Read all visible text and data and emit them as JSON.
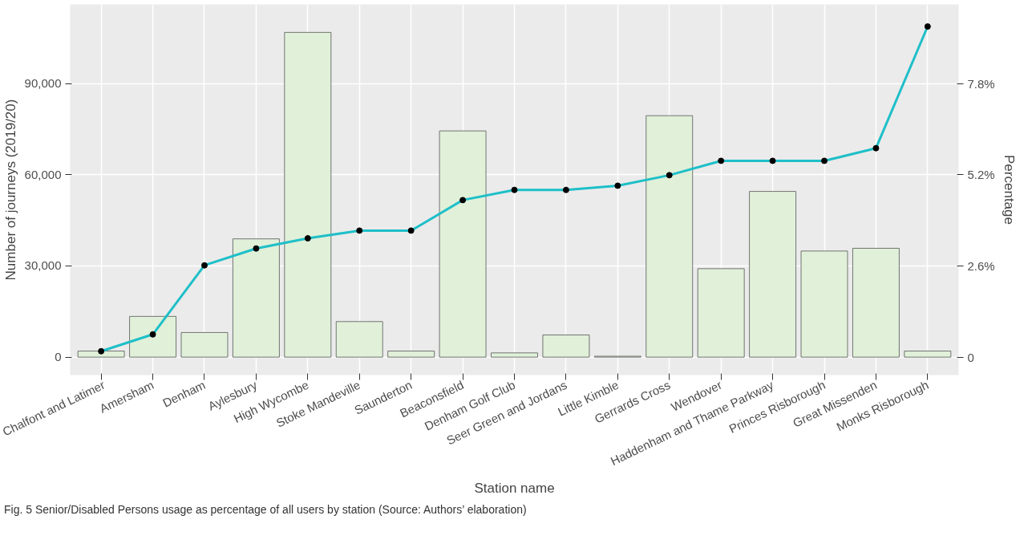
{
  "chart_data": {
    "type": "bar",
    "xlabel": "Station name",
    "ylabel": "Number of journeys (2019/20)",
    "y2label": "Percentage",
    "categories": [
      "Chalfont and Latimer",
      "Amersham",
      "Denham",
      "Aylesbury",
      "High Wycombe",
      "Stoke Mandeville",
      "Saunderton",
      "Beaconsfield",
      "Denham Golf Club",
      "Seer Green and Jordans",
      "Little Kimble",
      "Gerrards Cross",
      "Wendover",
      "Haddenham and Thame Parkway",
      "Princes Risborough",
      "Great Missenden",
      "Monks Risborough"
    ],
    "series": [
      {
        "color": "#e0f0d9",
        "values": [
          2000,
          13400,
          8100,
          38900,
          106800,
          11700,
          2000,
          74400,
          1400,
          7300,
          300,
          79400,
          29100,
          54500,
          34900,
          35800,
          2000
        ]
      },
      {
        "type": "line",
        "axis": "y2",
        "color": "#1ebfc8",
        "marker": "circle",
        "values": [
          0.17,
          0.65,
          2.62,
          3.1,
          3.39,
          3.61,
          3.61,
          4.48,
          4.77,
          4.77,
          4.89,
          5.19,
          5.6,
          5.6,
          5.6,
          5.96,
          9.43
        ]
      }
    ],
    "ylim": [
      -5900,
      116000
    ],
    "yticks": [
      {
        "value": 0,
        "label": "0"
      },
      {
        "value": 30000,
        "label": "30,000"
      },
      {
        "value": 60000,
        "label": "60,000"
      },
      {
        "value": 90000,
        "label": "90,000"
      }
    ],
    "y2lim": [
      -0.51,
      10.06
    ],
    "y2ticks": [
      {
        "value": 0,
        "label": "0"
      },
      {
        "value": 2.6,
        "label": "2.6%"
      },
      {
        "value": 5.2,
        "label": "5.2%"
      },
      {
        "value": 7.8,
        "label": "7.8%"
      }
    ],
    "grid": true,
    "annotations": [
      "Fig. 5 Senior/Disabled Persons usage as percentage of all users by station (Source: Authors’ elaboration)"
    ]
  }
}
